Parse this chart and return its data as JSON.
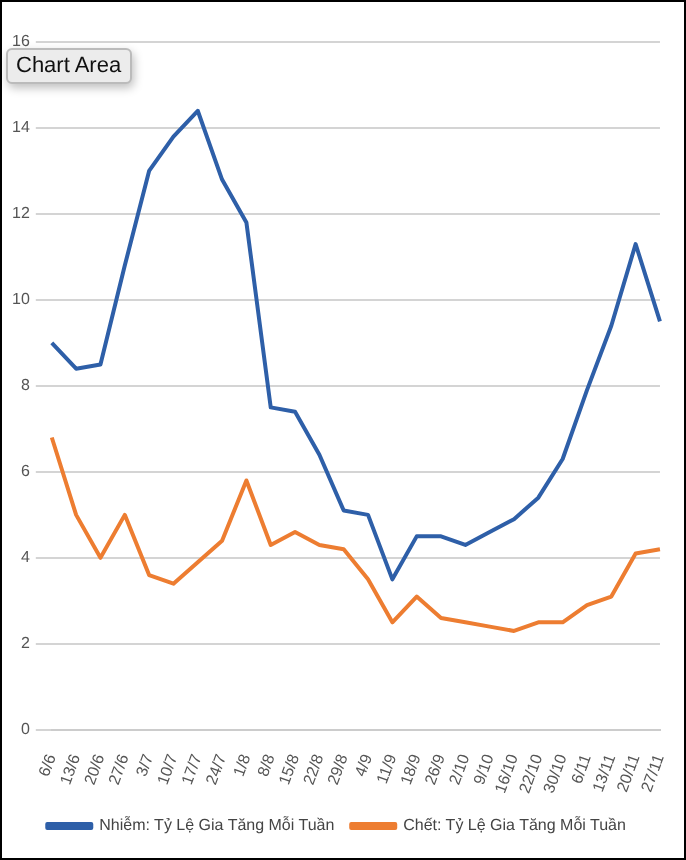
{
  "chart_data": {
    "type": "line",
    "categories": [
      "6/6",
      "13/6",
      "20/6",
      "27/6",
      "3/7",
      "10/7",
      "17/7",
      "24/7",
      "1/8",
      "8/8",
      "15/8",
      "22/8",
      "29/8",
      "4/9",
      "11/9",
      "18/9",
      "26/9",
      "2/10",
      "9/10",
      "16/10",
      "22/10",
      "30/10",
      "6/11",
      "13/11",
      "20/11",
      "27/11"
    ],
    "series": [
      {
        "name": "Nhiễm: Tỷ Lệ Gia Tăng Mỗi Tuần",
        "color": "#2e5fa8",
        "values": [
          9.0,
          8.4,
          8.5,
          10.8,
          13.0,
          13.8,
          14.4,
          12.8,
          11.8,
          7.5,
          7.4,
          6.4,
          5.1,
          5.0,
          3.5,
          4.5,
          4.5,
          4.3,
          4.6,
          4.9,
          5.4,
          6.3,
          7.9,
          9.4,
          11.3,
          9.5
        ]
      },
      {
        "name": "Chết: Tỷ Lệ Gia Tăng Mỗi Tuần",
        "color": "#ed7d31",
        "values": [
          6.8,
          5.0,
          4.0,
          5.0,
          3.6,
          3.4,
          3.9,
          4.4,
          5.8,
          4.3,
          4.6,
          4.3,
          4.2,
          3.5,
          2.5,
          3.1,
          2.6,
          2.5,
          2.4,
          2.3,
          2.5,
          2.5,
          2.9,
          3.1,
          4.1,
          4.2
        ]
      }
    ],
    "ylim": [
      0,
      16
    ],
    "yticks": [
      0,
      2,
      4,
      6,
      8,
      10,
      12,
      14,
      16
    ],
    "grid": "y",
    "legend": "bottom",
    "marker": "none",
    "line_style": "solid",
    "annotations": [
      "Chart Area"
    ]
  }
}
